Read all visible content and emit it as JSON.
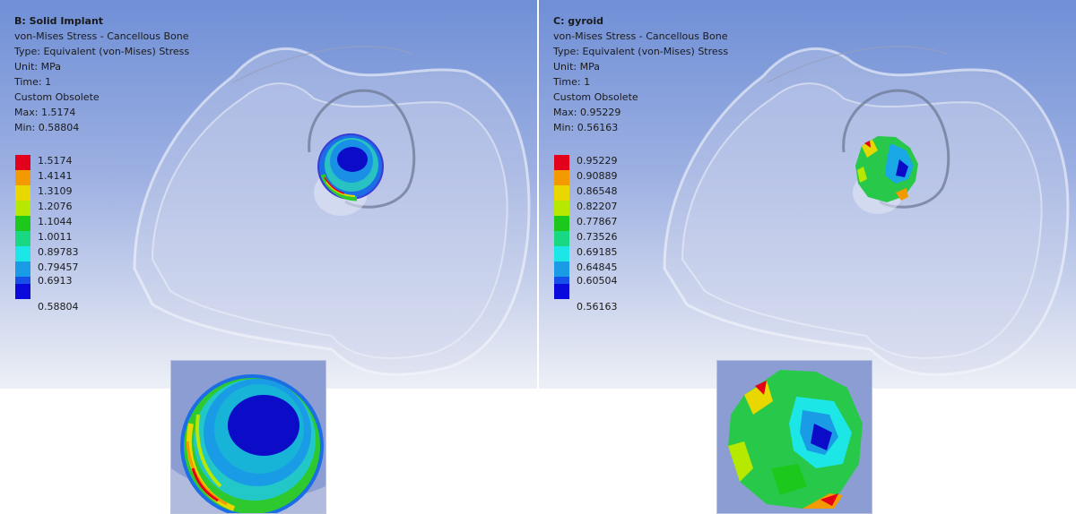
{
  "panel_b": {
    "title": "B: Solid Implant",
    "line1": "von-Mises Stress - Cancellous Bone",
    "line2": "Type: Equivalent (von-Mises) Stress",
    "line3": "Unit: MPa",
    "line4": "Time: 1",
    "line5": "Custom Obsolete",
    "line6": "Max: 1.5174",
    "line7": "Min: 0.58804",
    "legend": [
      "1.5174",
      "1.4141",
      "1.3109",
      "1.2076",
      "1.1044",
      "1.0011",
      "0.89783",
      "0.79457",
      "0.6913",
      "0.58804"
    ]
  },
  "panel_c": {
    "title": "C: gyroid",
    "line1": "von-Mises Stress - Cancellous Bone",
    "line2": "Type: Equivalent (von-Mises) Stress",
    "line3": "Unit: MPa",
    "line4": "Time: 1",
    "line5": "Custom Obsolete",
    "line6": "Max: 0.95229",
    "line7": "Min: 0.56163",
    "legend": [
      "0.95229",
      "0.90889",
      "0.86548",
      "0.82207",
      "0.77867",
      "0.73526",
      "0.69185",
      "0.64845",
      "0.60504",
      "0.56163"
    ]
  },
  "legend_colors": [
    "#e3001b",
    "#f39a00",
    "#e8d800",
    "#b6e800",
    "#1bc81b",
    "#18d882",
    "#1ce6e6",
    "#1a9be6",
    "#1550e8",
    "#0a0adc"
  ]
}
